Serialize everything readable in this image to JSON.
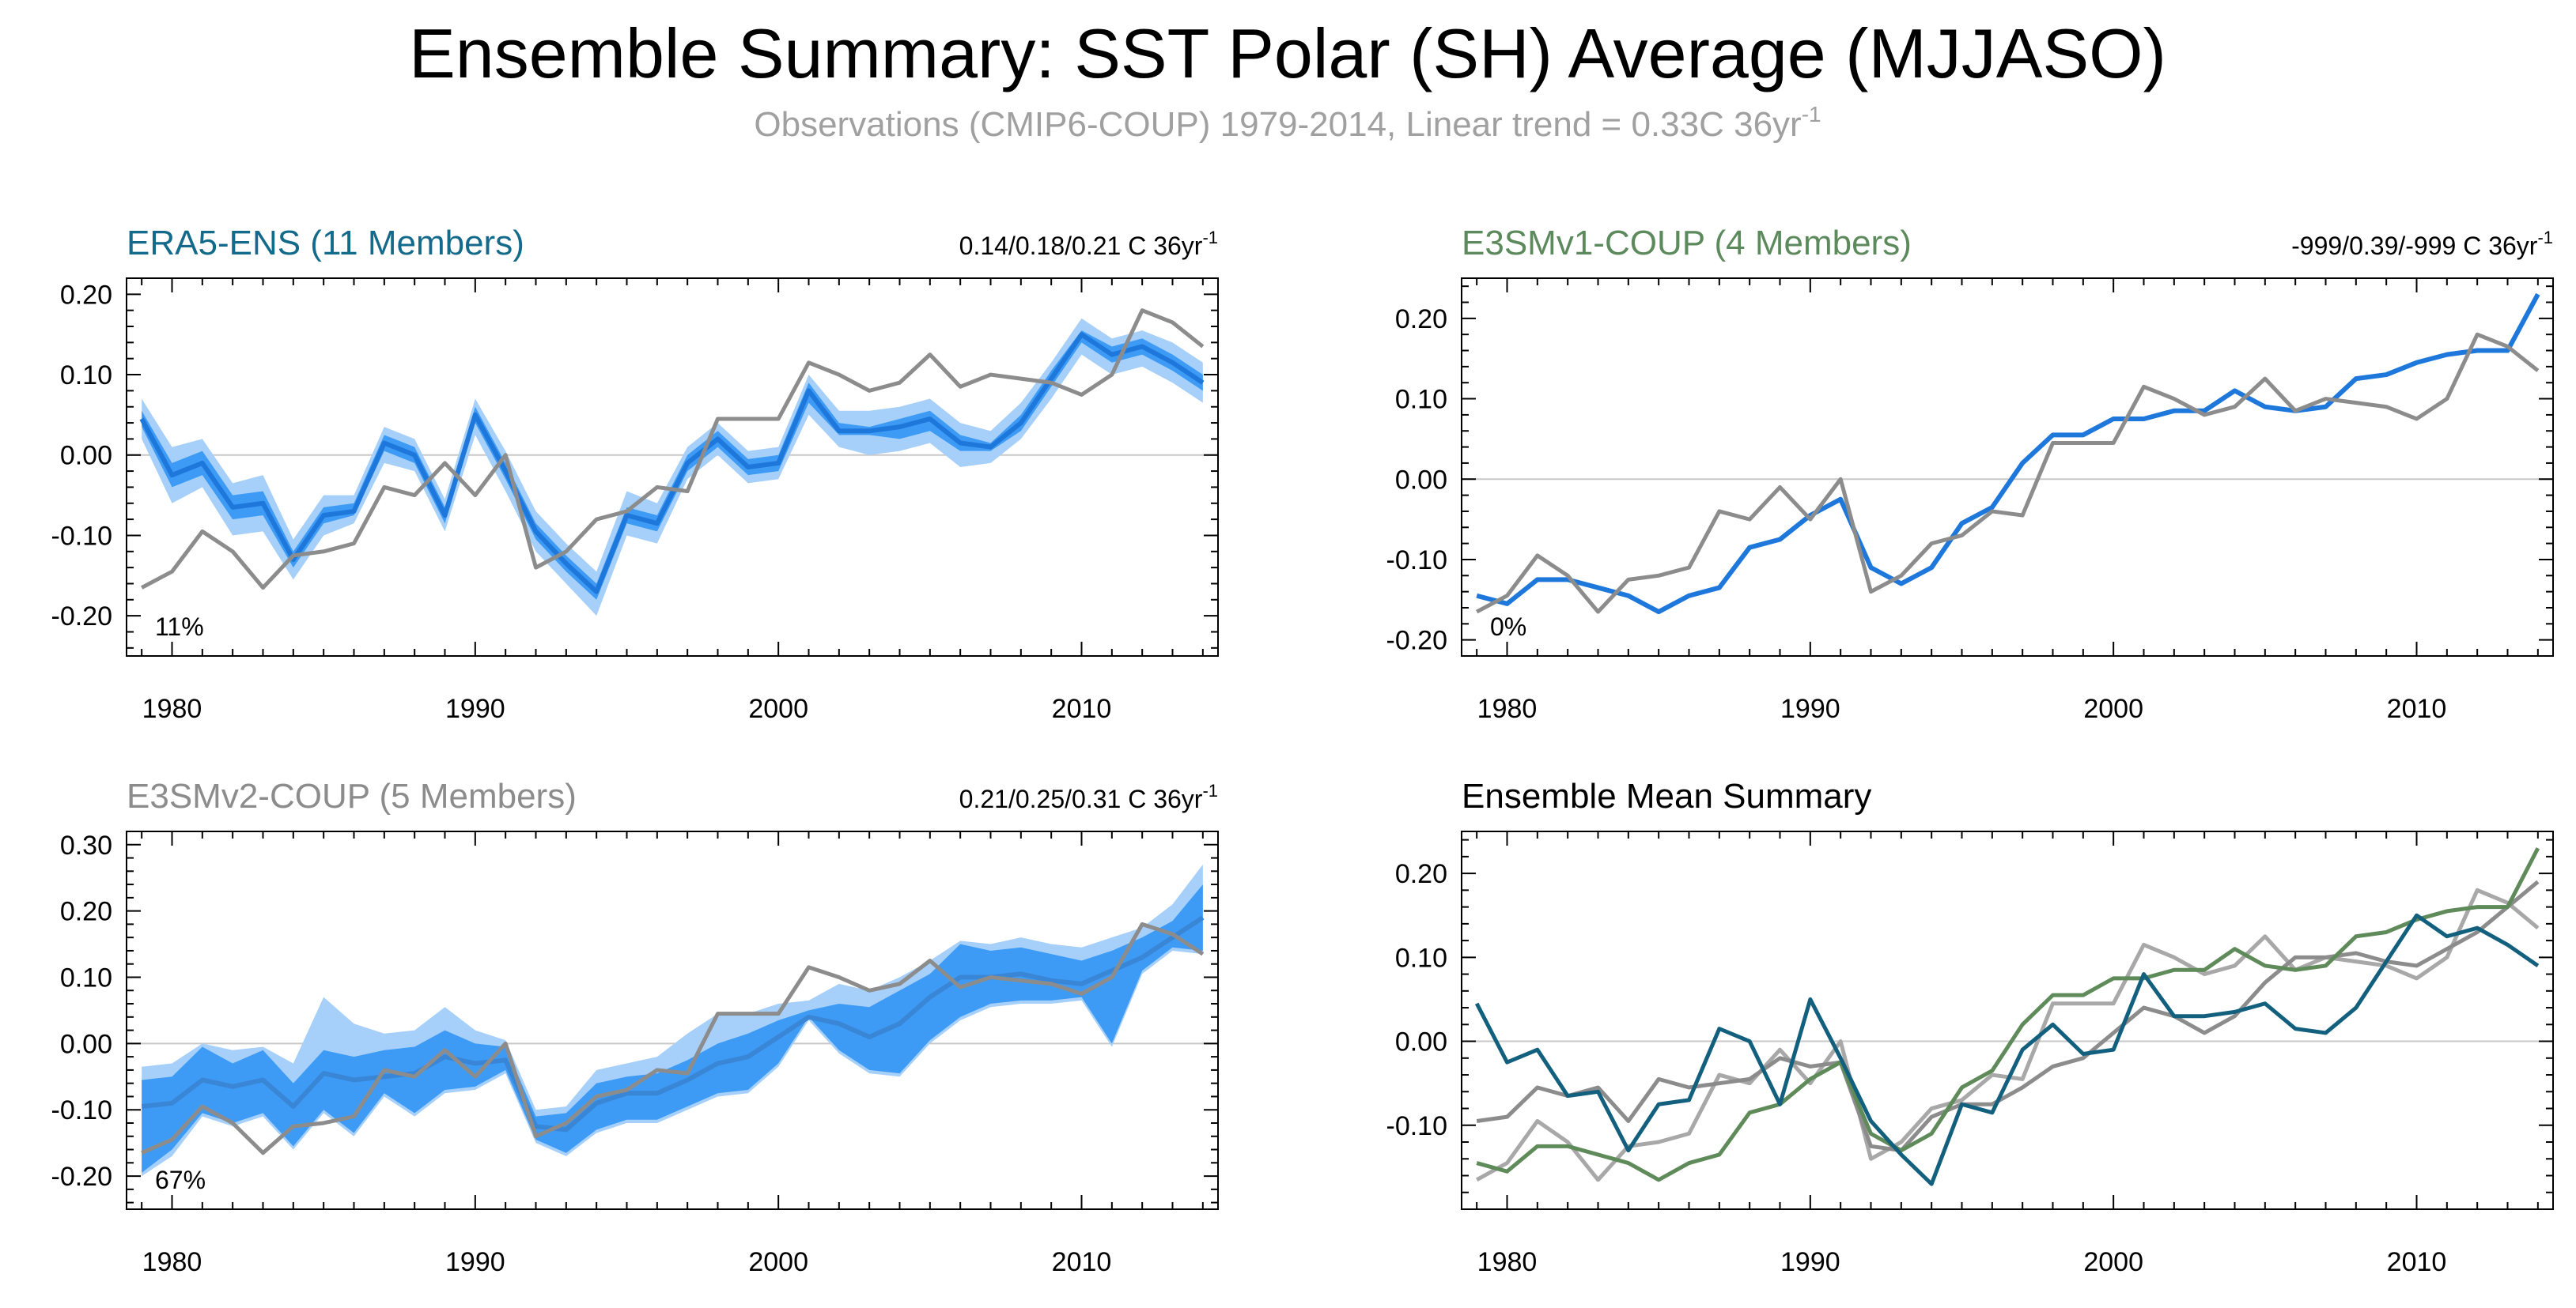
{
  "title": "Ensemble Summary: SST Polar (SH) Average (MJJASO)",
  "subtitle": {
    "text": "Observations (CMIP6-COUP) 1979-2014, Linear trend = 0.33C 36yr",
    "sup": "-1"
  },
  "colors": {
    "obs": "#8c8c8c",
    "ens_mean": "#1e78dc",
    "band_inner": "#3d9bf5",
    "band_outer": "#a6d0fa",
    "era5_title": "#136a8a",
    "e3smv1_title": "#5c8a5c",
    "e3smv2_title": "#8c8c8c",
    "summary_title": "#000000",
    "summary_era5": "#13607e",
    "summary_e3smv1": "#5f8a5a",
    "summary_e3smv2": "#8c8c8c",
    "summary_obs": "#a8a8a8"
  },
  "chart_data": [
    {
      "type": "line",
      "title": "ERA5-ENS (11 Members)",
      "trend_label": "0.14/0.18/0.21 C 36yr",
      "trend_sup": "-1",
      "corner_label": "11%",
      "xlim": [
        1978.5,
        2014.5
      ],
      "ylim": [
        -0.25,
        0.22
      ],
      "x_ticks": [
        1980,
        1990,
        2000,
        2010
      ],
      "y_ticks": [
        -0.2,
        -0.1,
        0.0,
        0.1,
        0.2
      ],
      "y_tick_labels": [
        "-0.20",
        "-0.10",
        "0.00",
        "0.10",
        "0.20"
      ],
      "x": [
        1979,
        1980,
        1981,
        1982,
        1983,
        1984,
        1985,
        1986,
        1987,
        1988,
        1989,
        1990,
        1991,
        1992,
        1993,
        1994,
        1995,
        1996,
        1997,
        1998,
        1999,
        2000,
        2001,
        2002,
        2003,
        2004,
        2005,
        2006,
        2007,
        2008,
        2009,
        2010,
        2011,
        2012,
        2013,
        2014
      ],
      "series": [
        {
          "name": "ens_mean",
          "values": [
            0.045,
            -0.025,
            -0.01,
            -0.065,
            -0.06,
            -0.13,
            -0.075,
            -0.07,
            0.015,
            0.0,
            -0.075,
            0.05,
            -0.02,
            -0.095,
            -0.135,
            -0.17,
            -0.075,
            -0.085,
            -0.01,
            0.02,
            -0.015,
            -0.01,
            0.08,
            0.03,
            0.03,
            0.035,
            0.045,
            0.015,
            0.01,
            0.04,
            0.095,
            0.15,
            0.125,
            0.135,
            0.115,
            0.09
          ]
        },
        {
          "name": "obs",
          "values": [
            -0.165,
            -0.145,
            -0.095,
            -0.12,
            -0.165,
            -0.125,
            -0.12,
            -0.11,
            -0.04,
            -0.05,
            -0.01,
            -0.05,
            0.0,
            -0.14,
            -0.12,
            -0.08,
            -0.07,
            -0.04,
            -0.045,
            0.045,
            0.045,
            0.045,
            0.115,
            0.1,
            0.08,
            0.09,
            0.125,
            0.085,
            0.1,
            0.095,
            0.09,
            0.075,
            0.1,
            0.18,
            0.165,
            0.135
          ]
        }
      ],
      "band_inner_low": [
        0.035,
        -0.04,
        -0.025,
        -0.08,
        -0.075,
        -0.14,
        -0.085,
        -0.075,
        0.005,
        -0.01,
        -0.085,
        0.04,
        -0.03,
        -0.105,
        -0.145,
        -0.18,
        -0.085,
        -0.095,
        -0.02,
        0.01,
        -0.025,
        -0.02,
        0.065,
        0.025,
        0.025,
        0.02,
        0.03,
        0.005,
        0.005,
        0.03,
        0.085,
        0.14,
        0.115,
        0.125,
        0.105,
        0.08
      ],
      "band_inner_high": [
        0.055,
        -0.01,
        0.005,
        -0.05,
        -0.045,
        -0.12,
        -0.065,
        -0.06,
        0.025,
        0.01,
        -0.065,
        0.06,
        -0.01,
        -0.085,
        -0.125,
        -0.16,
        -0.065,
        -0.075,
        0.0,
        0.03,
        -0.005,
        0.0,
        0.09,
        0.04,
        0.035,
        0.045,
        0.055,
        0.025,
        0.015,
        0.05,
        0.105,
        0.155,
        0.135,
        0.145,
        0.125,
        0.1
      ],
      "band_outer_low": [
        0.02,
        -0.06,
        -0.04,
        -0.1,
        -0.095,
        -0.155,
        -0.1,
        -0.085,
        -0.01,
        -0.02,
        -0.095,
        0.025,
        -0.045,
        -0.12,
        -0.16,
        -0.2,
        -0.1,
        -0.11,
        -0.03,
        0.0,
        -0.035,
        -0.03,
        0.05,
        0.01,
        0.0,
        0.005,
        0.015,
        -0.015,
        -0.01,
        0.02,
        0.07,
        0.125,
        0.1,
        0.11,
        0.09,
        0.065
      ],
      "band_outer_high": [
        0.07,
        0.01,
        0.02,
        -0.035,
        -0.025,
        -0.105,
        -0.05,
        -0.05,
        0.035,
        0.02,
        -0.055,
        0.07,
        0.005,
        -0.07,
        -0.11,
        -0.145,
        -0.045,
        -0.06,
        0.01,
        0.04,
        0.005,
        0.01,
        0.1,
        0.055,
        0.055,
        0.06,
        0.07,
        0.04,
        0.03,
        0.065,
        0.115,
        0.17,
        0.145,
        0.155,
        0.14,
        0.115
      ]
    },
    {
      "type": "line",
      "title": "E3SMv1-COUP (4 Members)",
      "trend_label": "-999/0.39/-999 C 36yr",
      "trend_sup": "-1",
      "corner_label": "0%",
      "xlim": [
        1978.5,
        2014.5
      ],
      "ylim": [
        -0.22,
        0.25
      ],
      "x_ticks": [
        1980,
        1990,
        2000,
        2010
      ],
      "y_ticks": [
        -0.2,
        -0.1,
        0.0,
        0.1,
        0.2
      ],
      "y_tick_labels": [
        "-0.20",
        "-0.10",
        "0.00",
        "0.10",
        "0.20"
      ],
      "x": [
        1979,
        1980,
        1981,
        1982,
        1983,
        1984,
        1985,
        1986,
        1987,
        1988,
        1989,
        1990,
        1991,
        1992,
        1993,
        1994,
        1995,
        1996,
        1997,
        1998,
        1999,
        2000,
        2001,
        2002,
        2003,
        2004,
        2005,
        2006,
        2007,
        2008,
        2009,
        2010,
        2011,
        2012,
        2013,
        2014
      ],
      "series": [
        {
          "name": "ens_mean",
          "values": [
            -0.145,
            -0.155,
            -0.125,
            -0.125,
            -0.135,
            -0.145,
            -0.165,
            -0.145,
            -0.135,
            -0.085,
            -0.075,
            -0.045,
            -0.025,
            -0.11,
            -0.13,
            -0.11,
            -0.055,
            -0.035,
            0.02,
            0.055,
            0.055,
            0.075,
            0.075,
            0.085,
            0.085,
            0.11,
            0.09,
            0.085,
            0.09,
            0.125,
            0.13,
            0.145,
            0.155,
            0.16,
            0.16,
            0.23
          ]
        },
        {
          "name": "obs",
          "values": [
            -0.165,
            -0.145,
            -0.095,
            -0.12,
            -0.165,
            -0.125,
            -0.12,
            -0.11,
            -0.04,
            -0.05,
            -0.01,
            -0.05,
            0.0,
            -0.14,
            -0.12,
            -0.08,
            -0.07,
            -0.04,
            -0.045,
            0.045,
            0.045,
            0.045,
            0.115,
            0.1,
            0.08,
            0.09,
            0.125,
            0.085,
            0.1,
            0.095,
            0.09,
            0.075,
            0.1,
            0.18,
            0.165,
            0.135
          ]
        }
      ]
    },
    {
      "type": "line",
      "title": "E3SMv2-COUP (5 Members)",
      "trend_label": "0.21/0.25/0.31 C 36yr",
      "trend_sup": "-1",
      "corner_label": "67%",
      "xlim": [
        1978.5,
        2014.5
      ],
      "ylim": [
        -0.25,
        0.32
      ],
      "x_ticks": [
        1980,
        1990,
        2000,
        2010
      ],
      "y_ticks": [
        -0.2,
        -0.1,
        0.0,
        0.1,
        0.2,
        0.3
      ],
      "y_tick_labels": [
        "-0.20",
        "-0.10",
        "0.00",
        "0.10",
        "0.20",
        "0.30"
      ],
      "x": [
        1979,
        1980,
        1981,
        1982,
        1983,
        1984,
        1985,
        1986,
        1987,
        1988,
        1989,
        1990,
        1991,
        1992,
        1993,
        1994,
        1995,
        1996,
        1997,
        1998,
        1999,
        2000,
        2001,
        2002,
        2003,
        2004,
        2005,
        2006,
        2007,
        2008,
        2009,
        2010,
        2011,
        2012,
        2013,
        2014
      ],
      "series": [
        {
          "name": "ens_mean",
          "values": [
            -0.095,
            -0.09,
            -0.055,
            -0.065,
            -0.055,
            -0.095,
            -0.045,
            -0.055,
            -0.05,
            -0.045,
            -0.02,
            -0.03,
            -0.025,
            -0.125,
            -0.13,
            -0.09,
            -0.075,
            -0.075,
            -0.055,
            -0.03,
            -0.02,
            0.01,
            0.04,
            0.03,
            0.01,
            0.03,
            0.07,
            0.1,
            0.1,
            0.105,
            0.095,
            0.09,
            0.11,
            0.13,
            0.16,
            0.19
          ]
        },
        {
          "name": "obs",
          "values": [
            -0.165,
            -0.145,
            -0.095,
            -0.12,
            -0.165,
            -0.125,
            -0.12,
            -0.11,
            -0.04,
            -0.05,
            -0.01,
            -0.05,
            0.0,
            -0.14,
            -0.12,
            -0.08,
            -0.07,
            -0.04,
            -0.045,
            0.045,
            0.045,
            0.045,
            0.115,
            0.1,
            0.08,
            0.09,
            0.125,
            0.085,
            0.1,
            0.095,
            0.09,
            0.075,
            0.1,
            0.18,
            0.165,
            0.135
          ]
        }
      ],
      "band_inner_low": [
        -0.195,
        -0.16,
        -0.105,
        -0.12,
        -0.105,
        -0.155,
        -0.1,
        -0.135,
        -0.075,
        -0.105,
        -0.07,
        -0.065,
        -0.04,
        -0.145,
        -0.165,
        -0.13,
        -0.115,
        -0.115,
        -0.095,
        -0.075,
        -0.07,
        -0.03,
        0.04,
        -0.01,
        -0.04,
        -0.045,
        0.005,
        0.04,
        0.06,
        0.065,
        0.065,
        0.07,
        0.0,
        0.11,
        0.145,
        0.14
      ],
      "band_inner_high": [
        -0.055,
        -0.05,
        -0.005,
        -0.03,
        -0.01,
        -0.06,
        -0.01,
        -0.02,
        -0.01,
        -0.005,
        0.02,
        0.0,
        -0.005,
        -0.11,
        -0.105,
        -0.06,
        -0.05,
        -0.045,
        -0.025,
        0.0,
        0.015,
        0.035,
        0.05,
        0.06,
        0.055,
        0.08,
        0.105,
        0.15,
        0.14,
        0.145,
        0.135,
        0.125,
        0.14,
        0.16,
        0.185,
        0.24
      ],
      "band_outer_low": [
        -0.2,
        -0.17,
        -0.11,
        -0.125,
        -0.11,
        -0.16,
        -0.105,
        -0.14,
        -0.08,
        -0.11,
        -0.075,
        -0.07,
        -0.045,
        -0.15,
        -0.17,
        -0.135,
        -0.12,
        -0.12,
        -0.1,
        -0.08,
        -0.075,
        -0.035,
        0.035,
        -0.015,
        -0.045,
        -0.05,
        0.0,
        0.035,
        0.055,
        0.06,
        0.06,
        0.065,
        -0.005,
        0.105,
        0.14,
        0.135
      ],
      "band_outer_high": [
        -0.035,
        -0.03,
        0.0,
        -0.01,
        -0.005,
        -0.03,
        0.07,
        0.03,
        0.015,
        0.02,
        0.055,
        0.02,
        0.005,
        -0.1,
        -0.095,
        -0.04,
        -0.03,
        -0.02,
        0.015,
        0.045,
        0.045,
        0.06,
        0.065,
        0.09,
        0.08,
        0.1,
        0.125,
        0.155,
        0.15,
        0.16,
        0.15,
        0.145,
        0.16,
        0.175,
        0.21,
        0.27
      ]
    },
    {
      "type": "line",
      "title": "Ensemble Mean Summary",
      "xlim": [
        1978.5,
        2014.5
      ],
      "ylim": [
        -0.2,
        0.25
      ],
      "x_ticks": [
        1980,
        1990,
        2000,
        2010
      ],
      "y_ticks": [
        -0.1,
        0.0,
        0.1,
        0.2
      ],
      "y_tick_labels": [
        "-0.10",
        "0.00",
        "0.10",
        "0.20"
      ],
      "x": [
        1979,
        1980,
        1981,
        1982,
        1983,
        1984,
        1985,
        1986,
        1987,
        1988,
        1989,
        1990,
        1991,
        1992,
        1993,
        1994,
        1995,
        1996,
        1997,
        1998,
        1999,
        2000,
        2001,
        2002,
        2003,
        2004,
        2005,
        2006,
        2007,
        2008,
        2009,
        2010,
        2011,
        2012,
        2013,
        2014
      ],
      "series": [
        {
          "name": "obs",
          "values": [
            -0.165,
            -0.145,
            -0.095,
            -0.12,
            -0.165,
            -0.125,
            -0.12,
            -0.11,
            -0.04,
            -0.05,
            -0.01,
            -0.05,
            0.0,
            -0.14,
            -0.12,
            -0.08,
            -0.07,
            -0.04,
            -0.045,
            0.045,
            0.045,
            0.045,
            0.115,
            0.1,
            0.08,
            0.09,
            0.125,
            0.085,
            0.1,
            0.095,
            0.09,
            0.075,
            0.1,
            0.18,
            0.165,
            0.135
          ]
        },
        {
          "name": "e3smv2",
          "values": [
            -0.095,
            -0.09,
            -0.055,
            -0.065,
            -0.055,
            -0.095,
            -0.045,
            -0.055,
            -0.05,
            -0.045,
            -0.02,
            -0.03,
            -0.025,
            -0.125,
            -0.13,
            -0.09,
            -0.075,
            -0.075,
            -0.055,
            -0.03,
            -0.02,
            0.01,
            0.04,
            0.03,
            0.01,
            0.03,
            0.07,
            0.1,
            0.1,
            0.105,
            0.095,
            0.09,
            0.11,
            0.13,
            0.16,
            0.19
          ]
        },
        {
          "name": "e3smv1",
          "values": [
            -0.145,
            -0.155,
            -0.125,
            -0.125,
            -0.135,
            -0.145,
            -0.165,
            -0.145,
            -0.135,
            -0.085,
            -0.075,
            -0.045,
            -0.025,
            -0.11,
            -0.13,
            -0.11,
            -0.055,
            -0.035,
            0.02,
            0.055,
            0.055,
            0.075,
            0.075,
            0.085,
            0.085,
            0.11,
            0.09,
            0.085,
            0.09,
            0.125,
            0.13,
            0.145,
            0.155,
            0.16,
            0.16,
            0.23
          ]
        },
        {
          "name": "era5",
          "values": [
            0.045,
            -0.025,
            -0.01,
            -0.065,
            -0.06,
            -0.13,
            -0.075,
            -0.07,
            0.015,
            0.0,
            -0.075,
            0.05,
            -0.02,
            -0.095,
            -0.135,
            -0.17,
            -0.075,
            -0.085,
            -0.01,
            0.02,
            -0.015,
            -0.01,
            0.08,
            0.03,
            0.03,
            0.035,
            0.045,
            0.015,
            0.01,
            0.04,
            0.095,
            0.15,
            0.125,
            0.135,
            0.115,
            0.09
          ]
        }
      ]
    }
  ]
}
